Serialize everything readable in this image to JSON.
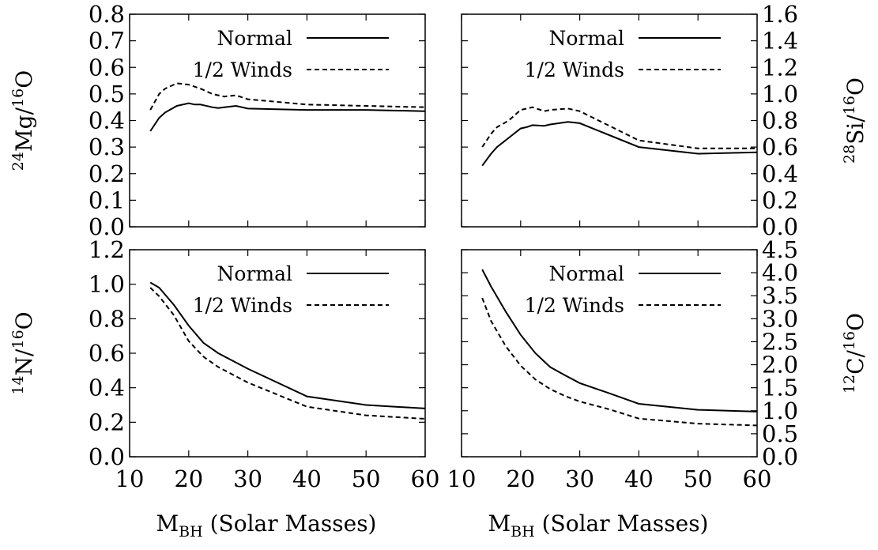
{
  "chart_data": [
    {
      "type": "line",
      "ylabel": {
        "sup": "24",
        "base": "Mg/",
        "sup2": "16",
        "tail": "O"
      },
      "ylabel_side": "left",
      "ticks_side": "left",
      "xlim": [
        10,
        60
      ],
      "ylim": [
        0,
        0.8
      ],
      "yticks": [
        "0.0",
        "0.1",
        "0.2",
        "0.3",
        "0.4",
        "0.5",
        "0.6",
        "0.7",
        "0.8"
      ],
      "legend_position": "top-right",
      "series": [
        {
          "name": "Normal",
          "style": "solid",
          "x": [
            13.5,
            15,
            16,
            18,
            20,
            21,
            22,
            24,
            25,
            26,
            28,
            30,
            40,
            50,
            60
          ],
          "y": [
            0.36,
            0.41,
            0.43,
            0.455,
            0.465,
            0.46,
            0.46,
            0.45,
            0.447,
            0.45,
            0.455,
            0.445,
            0.44,
            0.44,
            0.435
          ]
        },
        {
          "name": "1/2 Winds",
          "style": "dashed",
          "x": [
            13.5,
            15,
            16,
            18,
            20,
            22,
            24,
            25,
            26,
            28,
            30,
            40,
            50,
            60
          ],
          "y": [
            0.44,
            0.5,
            0.52,
            0.54,
            0.535,
            0.52,
            0.5,
            0.495,
            0.49,
            0.495,
            0.48,
            0.46,
            0.455,
            0.45
          ]
        }
      ]
    },
    {
      "type": "line",
      "ylabel": {
        "sup": "28",
        "base": "Si/",
        "sup2": "16",
        "tail": "O"
      },
      "ylabel_side": "right",
      "ticks_side": "right",
      "xlim": [
        10,
        60
      ],
      "ylim": [
        0,
        1.6
      ],
      "yticks": [
        "0.0",
        "0.2",
        "0.4",
        "0.6",
        "0.8",
        "1.0",
        "1.2",
        "1.4",
        "1.6"
      ],
      "legend_position": "top-right",
      "series": [
        {
          "name": "Normal",
          "style": "solid",
          "x": [
            13.5,
            15,
            16,
            18,
            20,
            21,
            22,
            24,
            25,
            28,
            30,
            40,
            50,
            60
          ],
          "y": [
            0.46,
            0.55,
            0.6,
            0.67,
            0.74,
            0.75,
            0.765,
            0.76,
            0.77,
            0.79,
            0.78,
            0.6,
            0.55,
            0.56
          ]
        },
        {
          "name": "1/2 Winds",
          "style": "dashed",
          "x": [
            13.5,
            15,
            16,
            18,
            20,
            22,
            24,
            25,
            28,
            30,
            40,
            50,
            60
          ],
          "y": [
            0.6,
            0.7,
            0.75,
            0.8,
            0.88,
            0.9,
            0.87,
            0.88,
            0.89,
            0.87,
            0.65,
            0.59,
            0.59
          ]
        }
      ]
    },
    {
      "type": "line",
      "ylabel": {
        "sup": "14",
        "base": "N/",
        "sup2": "16",
        "tail": "O"
      },
      "ylabel_side": "left",
      "ticks_side": "left",
      "xlim": [
        10,
        60
      ],
      "ylim": [
        0,
        1.2
      ],
      "yticks": [
        "0.0",
        "0.2",
        "0.4",
        "0.6",
        "0.8",
        "1.0",
        "1.2"
      ],
      "xticks": [
        "10",
        "20",
        "30",
        "40",
        "50",
        "60"
      ],
      "xlabel": {
        "base": "M",
        "sub": "BH",
        "tail": " (Solar Masses)"
      },
      "legend_position": "top-right",
      "series": [
        {
          "name": "Normal",
          "style": "solid",
          "x": [
            13.5,
            15,
            17.5,
            20,
            22.5,
            25,
            30,
            40,
            50,
            60
          ],
          "y": [
            1.01,
            0.98,
            0.88,
            0.76,
            0.66,
            0.6,
            0.51,
            0.35,
            0.3,
            0.28
          ]
        },
        {
          "name": "1/2 Winds",
          "style": "dashed",
          "x": [
            13.5,
            15,
            17.5,
            20,
            22.5,
            25,
            30,
            40,
            50,
            60
          ],
          "y": [
            0.98,
            0.93,
            0.82,
            0.67,
            0.58,
            0.52,
            0.43,
            0.29,
            0.24,
            0.22
          ]
        }
      ]
    },
    {
      "type": "line",
      "ylabel": {
        "sup": "12",
        "base": "C/",
        "sup2": "16",
        "tail": "O"
      },
      "ylabel_side": "right",
      "ticks_side": "right",
      "xlim": [
        10,
        60
      ],
      "ylim": [
        0,
        4.5
      ],
      "yticks": [
        "0.0",
        "0.5",
        "1.0",
        "1.5",
        "2.0",
        "2.5",
        "3.0",
        "3.5",
        "4.0",
        "4.5"
      ],
      "xticks": [
        "10",
        "20",
        "30",
        "40",
        "50",
        "60"
      ],
      "xlabel": {
        "base": "M",
        "sub": "BH",
        "tail": " (Solar Masses)"
      },
      "legend_position": "top-right",
      "series": [
        {
          "name": "Normal",
          "style": "solid",
          "x": [
            13.5,
            15,
            17.5,
            20,
            22.5,
            25,
            27.5,
            30,
            35,
            40,
            50,
            60
          ],
          "y": [
            4.07,
            3.7,
            3.15,
            2.65,
            2.25,
            1.95,
            1.77,
            1.6,
            1.38,
            1.15,
            1.02,
            0.98
          ]
        },
        {
          "name": "1/2 Winds",
          "style": "dashed",
          "x": [
            13.5,
            15,
            17.5,
            20,
            22.5,
            25,
            27.5,
            30,
            35,
            40,
            50,
            60
          ],
          "y": [
            3.45,
            2.95,
            2.4,
            1.98,
            1.68,
            1.47,
            1.32,
            1.2,
            1.03,
            0.83,
            0.72,
            0.68
          ]
        }
      ]
    }
  ]
}
